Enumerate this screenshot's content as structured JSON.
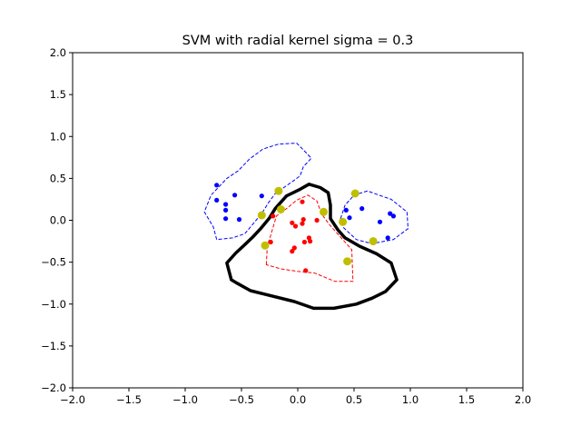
{
  "chart_data": {
    "type": "scatter",
    "title": "SVM with radial kernel sigma = 0.3",
    "xlabel": "",
    "ylabel": "",
    "xlim": [
      -2.0,
      2.0
    ],
    "ylim": [
      -2.0,
      2.0
    ],
    "xticks": [
      -2.0,
      -1.5,
      -1.0,
      -0.5,
      0.0,
      0.5,
      1.0,
      1.5,
      2.0
    ],
    "yticks": [
      -2.0,
      -1.5,
      -1.0,
      -0.5,
      0.0,
      0.5,
      1.0,
      1.5,
      2.0
    ],
    "xtick_labels": [
      "−2.0",
      "−1.5",
      "−1.0",
      "−0.5",
      "0.0",
      "0.5",
      "1.0",
      "1.5",
      "2.0"
    ],
    "ytick_labels": [
      "−2.0",
      "−1.5",
      "−1.0",
      "−0.5",
      "0.0",
      "0.5",
      "1.0",
      "1.5",
      "2.0"
    ],
    "grid": false,
    "colors": {
      "blue_class": "#0000ff",
      "red_class": "#ff0000",
      "support_vectors": "#bfbf00",
      "decision_boundary": "#000000"
    },
    "series": [
      {
        "kind": "points",
        "color": "#0000ff",
        "points": [
          [
            -0.72,
            0.42
          ],
          [
            -0.72,
            0.24
          ],
          [
            -0.56,
            0.3
          ],
          [
            -0.64,
            0.19
          ],
          [
            -0.64,
            0.12
          ],
          [
            -0.64,
            0.02
          ],
          [
            -0.52,
            0.01
          ],
          [
            -0.32,
            0.29
          ],
          [
            0.43,
            0.12
          ],
          [
            0.46,
            0.03
          ],
          [
            0.57,
            0.14
          ],
          [
            0.73,
            -0.02
          ],
          [
            0.82,
            0.08
          ],
          [
            0.85,
            0.05
          ],
          [
            0.8,
            -0.21
          ]
        ]
      },
      {
        "kind": "points",
        "color": "#ff0000",
        "points": [
          [
            -0.22,
            0.05
          ],
          [
            -0.05,
            -0.03
          ],
          [
            -0.02,
            -0.07
          ],
          [
            0.04,
            -0.04
          ],
          [
            0.05,
            0.01
          ],
          [
            0.04,
            0.22
          ],
          [
            0.17,
            0.0
          ],
          [
            -0.24,
            -0.26
          ],
          [
            0.06,
            -0.26
          ],
          [
            0.1,
            -0.21
          ],
          [
            0.11,
            -0.25
          ],
          [
            -0.03,
            -0.33
          ],
          [
            -0.05,
            -0.37
          ],
          [
            0.07,
            -0.6
          ]
        ]
      },
      {
        "kind": "support_vectors",
        "color": "#bfbf00",
        "points": [
          [
            -0.17,
            0.35
          ],
          [
            -0.15,
            0.13
          ],
          [
            -0.32,
            0.06
          ],
          [
            -0.29,
            -0.3
          ],
          [
            0.23,
            0.1
          ],
          [
            0.4,
            -0.02
          ],
          [
            0.51,
            0.32
          ],
          [
            0.67,
            -0.25
          ],
          [
            0.44,
            -0.49
          ]
        ]
      },
      {
        "kind": "decision_boundary",
        "color": "#000000",
        "style": "solid",
        "points": [
          [
            -0.63,
            -0.51
          ],
          [
            -0.55,
            -0.39
          ],
          [
            -0.47,
            -0.29
          ],
          [
            -0.4,
            -0.2
          ],
          [
            -0.33,
            -0.1
          ],
          [
            -0.25,
            0.03
          ],
          [
            -0.2,
            0.14
          ],
          [
            -0.1,
            0.29
          ],
          [
            0.02,
            0.37
          ],
          [
            0.1,
            0.43
          ],
          [
            0.2,
            0.39
          ],
          [
            0.27,
            0.33
          ],
          [
            0.29,
            0.18
          ],
          [
            0.29,
            0.02
          ],
          [
            0.36,
            -0.12
          ],
          [
            0.42,
            -0.21
          ],
          [
            0.55,
            -0.31
          ],
          [
            0.7,
            -0.4
          ],
          [
            0.83,
            -0.51
          ],
          [
            0.88,
            -0.71
          ],
          [
            0.78,
            -0.85
          ],
          [
            0.66,
            -0.93
          ],
          [
            0.52,
            -1.0
          ],
          [
            0.32,
            -1.05
          ],
          [
            0.14,
            -1.05
          ],
          [
            -0.03,
            -0.97
          ],
          [
            -0.3,
            -0.88
          ],
          [
            -0.42,
            -0.84
          ],
          [
            -0.54,
            -0.75
          ],
          [
            -0.59,
            -0.71
          ],
          [
            -0.63,
            -0.51
          ]
        ]
      },
      {
        "kind": "margin_contour",
        "color": "#0000ff",
        "style": "dashed",
        "points": [
          [
            -0.72,
            -0.23
          ],
          [
            -0.75,
            -0.08
          ],
          [
            -0.83,
            0.1
          ],
          [
            -0.77,
            0.3
          ],
          [
            -0.63,
            0.5
          ],
          [
            -0.53,
            0.59
          ],
          [
            -0.43,
            0.73
          ],
          [
            -0.31,
            0.85
          ],
          [
            -0.17,
            0.91
          ],
          [
            -0.01,
            0.92
          ],
          [
            0.05,
            0.84
          ],
          [
            0.12,
            0.74
          ],
          [
            0.05,
            0.64
          ],
          [
            0.02,
            0.53
          ],
          [
            -0.05,
            0.46
          ],
          [
            -0.2,
            0.32
          ],
          [
            -0.26,
            0.21
          ],
          [
            -0.32,
            0.08
          ],
          [
            -0.47,
            -0.16
          ],
          [
            -0.58,
            -0.21
          ],
          [
            -0.72,
            -0.23
          ]
        ]
      },
      {
        "kind": "margin_contour",
        "color": "#0000ff",
        "style": "dashed",
        "points": [
          [
            0.38,
            0.02
          ],
          [
            0.42,
            0.18
          ],
          [
            0.5,
            0.3
          ],
          [
            0.62,
            0.35
          ],
          [
            0.72,
            0.3
          ],
          [
            0.83,
            0.25
          ],
          [
            0.97,
            0.1
          ],
          [
            0.98,
            -0.1
          ],
          [
            0.85,
            -0.23
          ],
          [
            0.66,
            -0.28
          ],
          [
            0.52,
            -0.23
          ],
          [
            0.4,
            -0.08
          ],
          [
            0.38,
            0.02
          ]
        ]
      },
      {
        "kind": "margin_contour",
        "color": "#ff0000",
        "style": "dashed",
        "points": [
          [
            -0.28,
            -0.53
          ],
          [
            -0.27,
            -0.3
          ],
          [
            -0.24,
            -0.18
          ],
          [
            -0.19,
            0.05
          ],
          [
            -0.09,
            0.15
          ],
          [
            -0.01,
            0.24
          ],
          [
            0.09,
            0.3
          ],
          [
            0.17,
            0.23
          ],
          [
            0.21,
            0.08
          ],
          [
            0.28,
            -0.05
          ],
          [
            0.38,
            -0.2
          ],
          [
            0.48,
            -0.35
          ],
          [
            0.49,
            -0.73
          ],
          [
            0.33,
            -0.73
          ],
          [
            0.15,
            -0.63
          ],
          [
            0.0,
            -0.61
          ],
          [
            -0.15,
            -0.58
          ],
          [
            -0.28,
            -0.53
          ]
        ]
      }
    ]
  }
}
